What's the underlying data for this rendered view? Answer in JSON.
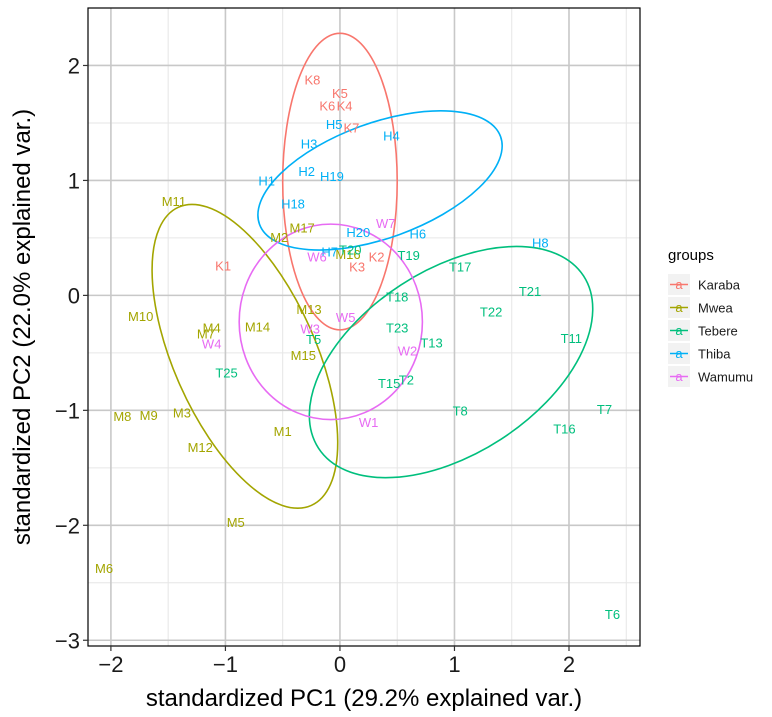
{
  "chart_data": {
    "type": "scatter",
    "xlabel": "standardized PC1 (29.2% explained var.)",
    "ylabel": "standardized PC2 (22.0% explained var.)",
    "xlim": [
      -2.2,
      2.62
    ],
    "ylim": [
      -3.05,
      2.5
    ],
    "xticks": [
      -2,
      -1,
      0,
      1,
      2
    ],
    "yticks": [
      -3,
      -2,
      -1,
      0,
      1,
      2
    ],
    "grid": true,
    "legend": {
      "title": "groups",
      "placement": "right"
    },
    "series": [
      {
        "name": "Karaba",
        "color": "#F8766D",
        "ellipse": {
          "cx": 0.0,
          "cy": 0.99,
          "rx": 0.5,
          "ry": 1.29,
          "rotation": 0
        },
        "points": [
          {
            "label": "K8",
            "x": -0.24,
            "y": 1.88
          },
          {
            "label": "K5",
            "x": 0.0,
            "y": 1.76
          },
          {
            "label": "K6",
            "x": -0.11,
            "y": 1.65
          },
          {
            "label": "K4",
            "x": 0.04,
            "y": 1.65
          },
          {
            "label": "K7",
            "x": 0.1,
            "y": 1.46
          },
          {
            "label": "K2",
            "x": 0.32,
            "y": 0.34
          },
          {
            "label": "K3",
            "x": 0.15,
            "y": 0.25
          },
          {
            "label": "K1",
            "x": -1.02,
            "y": 0.26
          }
        ]
      },
      {
        "name": "Mwea",
        "color": "#A3A500",
        "ellipse": {
          "cx": -0.83,
          "cy": -0.53,
          "rx": 0.62,
          "ry": 1.42,
          "rotation": 24
        },
        "points": [
          {
            "label": "M11",
            "x": -1.45,
            "y": 0.82
          },
          {
            "label": "M17",
            "x": -0.33,
            "y": 0.59
          },
          {
            "label": "M2",
            "x": -0.53,
            "y": 0.51
          },
          {
            "label": "M16",
            "x": 0.07,
            "y": 0.36
          },
          {
            "label": "M10",
            "x": -1.74,
            "y": -0.18
          },
          {
            "label": "M4",
            "x": -1.12,
            "y": -0.28
          },
          {
            "label": "M7",
            "x": -1.17,
            "y": -0.33
          },
          {
            "label": "M14",
            "x": -0.72,
            "y": -0.27
          },
          {
            "label": "M13",
            "x": -0.27,
            "y": -0.12
          },
          {
            "label": "M15",
            "x": -0.32,
            "y": -0.52
          },
          {
            "label": "M8",
            "x": -1.9,
            "y": -1.05
          },
          {
            "label": "M9",
            "x": -1.67,
            "y": -1.04
          },
          {
            "label": "M3",
            "x": -1.38,
            "y": -1.02
          },
          {
            "label": "M12",
            "x": -1.22,
            "y": -1.32
          },
          {
            "label": "M1",
            "x": -0.5,
            "y": -1.18
          },
          {
            "label": "M5",
            "x": -0.91,
            "y": -1.97
          },
          {
            "label": "M6",
            "x": -2.06,
            "y": -2.37
          }
        ]
      },
      {
        "name": "Tebere",
        "color": "#00BF7D",
        "ellipse": {
          "cx": 0.97,
          "cy": -0.58,
          "rx": 1.38,
          "ry": 0.8,
          "rotation": 33
        },
        "points": [
          {
            "label": "T20",
            "x": 0.09,
            "y": 0.4
          },
          {
            "label": "T19",
            "x": 0.6,
            "y": 0.35
          },
          {
            "label": "T17",
            "x": 1.05,
            "y": 0.25
          },
          {
            "label": "T21",
            "x": 1.66,
            "y": 0.04
          },
          {
            "label": "T18",
            "x": 0.5,
            "y": -0.01
          },
          {
            "label": "T22",
            "x": 1.32,
            "y": -0.14
          },
          {
            "label": "T23",
            "x": 0.5,
            "y": -0.28
          },
          {
            "label": "T5",
            "x": -0.23,
            "y": -0.38
          },
          {
            "label": "T13",
            "x": 0.8,
            "y": -0.41
          },
          {
            "label": "T11",
            "x": 2.02,
            "y": -0.37
          },
          {
            "label": "T25",
            "x": -0.99,
            "y": -0.67
          },
          {
            "label": "T15",
            "x": 0.43,
            "y": -0.76
          },
          {
            "label": "T2",
            "x": 0.58,
            "y": -0.73
          },
          {
            "label": "T8",
            "x": 1.05,
            "y": -1.0
          },
          {
            "label": "T7",
            "x": 2.31,
            "y": -0.99
          },
          {
            "label": "T16",
            "x": 1.96,
            "y": -1.16
          },
          {
            "label": "T6",
            "x": 2.38,
            "y": -2.77
          }
        ]
      },
      {
        "name": "Thiba",
        "color": "#00B0F6",
        "ellipse": {
          "cx": 0.35,
          "cy": 1.0,
          "rx": 1.12,
          "ry": 0.5,
          "rotation": 20
        },
        "points": [
          {
            "label": "H5",
            "x": -0.05,
            "y": 1.49
          },
          {
            "label": "H4",
            "x": 0.45,
            "y": 1.39
          },
          {
            "label": "H3",
            "x": -0.27,
            "y": 1.32
          },
          {
            "label": "H2",
            "x": -0.29,
            "y": 1.08
          },
          {
            "label": "H19",
            "x": -0.07,
            "y": 1.04
          },
          {
            "label": "H1",
            "x": -0.64,
            "y": 1.0
          },
          {
            "label": "H18",
            "x": -0.41,
            "y": 0.8
          },
          {
            "label": "H20",
            "x": 0.16,
            "y": 0.55
          },
          {
            "label": "H6",
            "x": 0.68,
            "y": 0.54
          },
          {
            "label": "H7",
            "x": -0.09,
            "y": 0.38
          },
          {
            "label": "H8",
            "x": 1.75,
            "y": 0.46
          }
        ]
      },
      {
        "name": "Wamumu",
        "color": "#E76BF3",
        "ellipse": {
          "cx": -0.08,
          "cy": -0.23,
          "rx": 0.8,
          "ry": 0.85,
          "rotation": 0
        },
        "points": [
          {
            "label": "W7",
            "x": 0.4,
            "y": 0.63
          },
          {
            "label": "W6",
            "x": -0.2,
            "y": 0.34
          },
          {
            "label": "W5",
            "x": 0.05,
            "y": -0.19
          },
          {
            "label": "W3",
            "x": -0.26,
            "y": -0.29
          },
          {
            "label": "W2",
            "x": 0.59,
            "y": -0.48
          },
          {
            "label": "W4",
            "x": -1.12,
            "y": -0.42
          },
          {
            "label": "W1",
            "x": 0.25,
            "y": -1.1
          }
        ]
      }
    ]
  }
}
